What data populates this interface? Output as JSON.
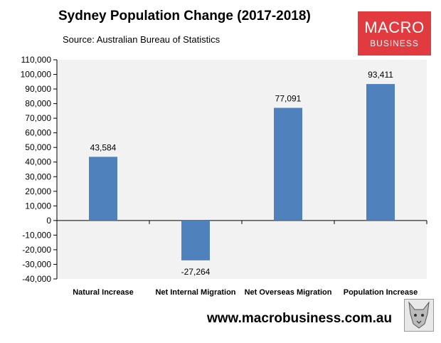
{
  "header": {
    "title": "Sydney Population Change (2017-2018)",
    "source": "Source: Australian Bureau of Statistics"
  },
  "logo": {
    "line1": "MACRO",
    "line2": "BUSINESS"
  },
  "footer": {
    "url": "www.macrobusiness.com.au"
  },
  "colors": {
    "bar": "#4f81bd",
    "plot_bg": "#f2f2f2",
    "logo_bg": "#e23b3f"
  },
  "chart_data": {
    "type": "bar",
    "categories": [
      "Natural Increase",
      "Net Internal Migration",
      "Net Overseas Migration",
      "Population Increase"
    ],
    "values": [
      43584,
      -27264,
      77091,
      93411
    ],
    "value_labels": [
      "43,584",
      "-27,264",
      "77,091",
      "93,411"
    ],
    "yticks": [
      "110,000",
      "100,000",
      "90,000",
      "80,000",
      "70,000",
      "60,000",
      "50,000",
      "40,000",
      "30,000",
      "20,000",
      "10,000",
      "0",
      "-10,000",
      "-20,000",
      "-30,000",
      "-40,000"
    ],
    "ylim": [
      -40000,
      110000
    ],
    "grid": false,
    "legend": "none"
  }
}
